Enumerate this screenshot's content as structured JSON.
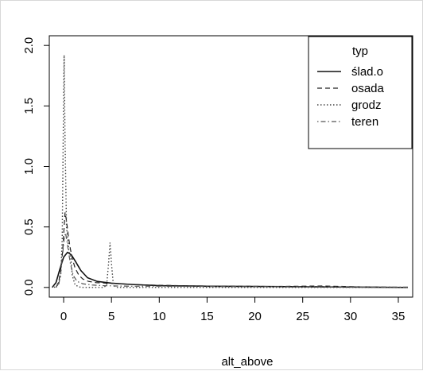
{
  "chart_data": {
    "type": "line",
    "title": "",
    "xlabel": "alt_above",
    "ylabel": "",
    "xlim": [
      -1.5,
      36.5
    ],
    "ylim": [
      -0.08,
      2.08
    ],
    "xticks": [
      0,
      5,
      10,
      15,
      20,
      25,
      30,
      35
    ],
    "yticks": [
      0.0,
      0.5,
      1.0,
      1.5,
      2.0
    ],
    "ytick_labels": [
      "0.0",
      "0.5",
      "1.0",
      "1.5",
      "2.0"
    ],
    "legend": {
      "title": "typ",
      "position": "top-right"
    },
    "series": [
      {
        "name": "ślad.o",
        "dash": "solid",
        "x": [
          -1.2,
          -0.8,
          -0.4,
          0,
          0.4,
          0.8,
          1.2,
          1.8,
          2.5,
          3.5,
          5,
          7,
          10,
          15,
          20,
          25,
          30,
          36
        ],
        "y": [
          0.0,
          0.04,
          0.15,
          0.25,
          0.29,
          0.27,
          0.22,
          0.14,
          0.08,
          0.05,
          0.035,
          0.025,
          0.015,
          0.01,
          0.008,
          0.006,
          0.003,
          0.0
        ]
      },
      {
        "name": "osada",
        "dash": "dashed",
        "x": [
          -0.8,
          -0.5,
          -0.3,
          -0.1,
          0.05,
          0.15,
          0.3,
          0.5,
          0.7,
          0.9,
          1.2,
          1.6,
          2.0,
          2.6,
          3.4,
          4.5,
          6,
          8,
          10,
          14,
          18,
          22,
          27,
          31,
          36
        ],
        "y": [
          0.0,
          0.05,
          0.15,
          0.3,
          0.5,
          0.62,
          0.55,
          0.42,
          0.32,
          0.24,
          0.16,
          0.1,
          0.07,
          0.05,
          0.04,
          0.035,
          0.03,
          0.022,
          0.018,
          0.012,
          0.01,
          0.008,
          0.012,
          0.005,
          0.0
        ]
      },
      {
        "name": "grodz",
        "dash": "dotted",
        "x": [
          -1.0,
          -0.6,
          -0.3,
          -0.15,
          -0.05,
          0.05,
          0.15,
          0.3,
          0.55,
          0.75,
          0.9,
          1.2,
          1.8,
          2.5,
          3.5,
          4.2,
          4.5,
          4.7,
          4.85,
          5.0,
          5.2,
          5.5,
          7,
          10,
          15,
          20,
          25,
          30,
          36
        ],
        "y": [
          0.0,
          0.02,
          0.1,
          0.4,
          1.2,
          1.92,
          1.2,
          0.5,
          0.3,
          0.25,
          0.1,
          0.02,
          0.0,
          0.0,
          0.0,
          0.0,
          0.02,
          0.2,
          0.37,
          0.2,
          0.02,
          0.0,
          0.0,
          0.0,
          0.0,
          0.0,
          0.0,
          0.0,
          0.0
        ]
      },
      {
        "name": "teren",
        "dash": "dotdash",
        "x": [
          -0.8,
          -0.5,
          -0.3,
          -0.1,
          0.05,
          0.2,
          0.35,
          0.5,
          0.7,
          1.0,
          1.4,
          2.0,
          3.0,
          4.0,
          5.5,
          7,
          10,
          15,
          20,
          25,
          30,
          36
        ],
        "y": [
          0.0,
          0.03,
          0.12,
          0.28,
          0.4,
          0.45,
          0.38,
          0.3,
          0.2,
          0.1,
          0.05,
          0.03,
          0.02,
          0.015,
          0.012,
          0.01,
          0.01,
          0.008,
          0.006,
          0.005,
          0.004,
          0.003
        ]
      }
    ]
  }
}
